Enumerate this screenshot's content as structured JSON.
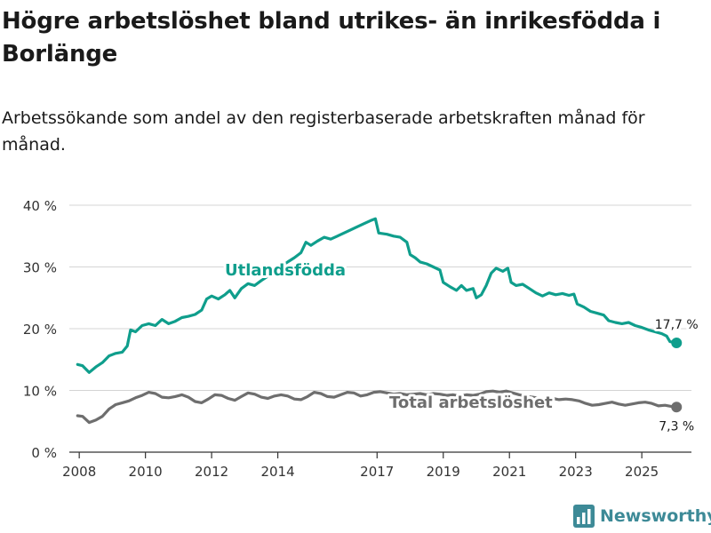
{
  "title": "Högre arbetslöshet bland utrikes- än inrikesfödda i Borlänge",
  "subtitle": "Arbetssökande som andel av den registerbaserade arbetskraften månad för månad.",
  "brand": "Newsworthy",
  "colors": {
    "utlandsfodda": "#0f9e8c",
    "total": "#6e6e6e",
    "brand": "#3d8a97",
    "grid": "#d4d4d4"
  },
  "chart_data": {
    "type": "line",
    "title": "Högre arbetslöshet bland utrikes- än inrikesfödda i Borlänge",
    "xlabel": "",
    "ylabel": "",
    "xlim": [
      2007.7,
      2026.5
    ],
    "ylim": [
      0,
      40
    ],
    "x_ticks": [
      2008,
      2010,
      2012,
      2014,
      2017,
      2019,
      2021,
      2023,
      2025
    ],
    "y_ticks": [
      {
        "value": 0,
        "label": "0 %"
      },
      {
        "value": 10,
        "label": "10 %"
      },
      {
        "value": 20,
        "label": "20 %"
      },
      {
        "value": 30,
        "label": "30 %"
      },
      {
        "value": 40,
        "label": "40 %"
      }
    ],
    "series": [
      {
        "name": "Utlandsfödda",
        "label": "Utlandsfödda",
        "end_label": "17,7 %",
        "points": [
          [
            2007.95,
            14.2
          ],
          [
            2008.1,
            14.0
          ],
          [
            2008.3,
            12.9
          ],
          [
            2008.5,
            13.8
          ],
          [
            2008.7,
            14.5
          ],
          [
            2008.9,
            15.6
          ],
          [
            2009.1,
            16.0
          ],
          [
            2009.3,
            16.2
          ],
          [
            2009.45,
            17.2
          ],
          [
            2009.55,
            19.8
          ],
          [
            2009.7,
            19.5
          ],
          [
            2009.9,
            20.5
          ],
          [
            2010.1,
            20.8
          ],
          [
            2010.3,
            20.5
          ],
          [
            2010.5,
            21.5
          ],
          [
            2010.7,
            20.8
          ],
          [
            2010.9,
            21.2
          ],
          [
            2011.1,
            21.8
          ],
          [
            2011.3,
            22.0
          ],
          [
            2011.5,
            22.3
          ],
          [
            2011.7,
            23.0
          ],
          [
            2011.85,
            24.8
          ],
          [
            2012.0,
            25.3
          ],
          [
            2012.2,
            24.8
          ],
          [
            2012.4,
            25.5
          ],
          [
            2012.55,
            26.2
          ],
          [
            2012.7,
            25.0
          ],
          [
            2012.9,
            26.5
          ],
          [
            2013.1,
            27.3
          ],
          [
            2013.3,
            27.0
          ],
          [
            2013.5,
            27.8
          ],
          [
            2013.7,
            28.5
          ],
          [
            2013.9,
            29.3
          ],
          [
            2014.1,
            30.0
          ],
          [
            2014.3,
            30.8
          ],
          [
            2014.5,
            31.5
          ],
          [
            2014.7,
            32.3
          ],
          [
            2014.85,
            34.0
          ],
          [
            2015.0,
            33.5
          ],
          [
            2015.2,
            34.2
          ],
          [
            2015.4,
            34.8
          ],
          [
            2015.6,
            34.5
          ],
          [
            2015.8,
            35.0
          ],
          [
            2016.0,
            35.5
          ],
          [
            2016.2,
            36.0
          ],
          [
            2016.4,
            36.5
          ],
          [
            2016.6,
            37.0
          ],
          [
            2016.8,
            37.5
          ],
          [
            2016.95,
            37.8
          ],
          [
            2017.05,
            35.5
          ],
          [
            2017.3,
            35.3
          ],
          [
            2017.5,
            35.0
          ],
          [
            2017.7,
            34.8
          ],
          [
            2017.9,
            34.0
          ],
          [
            2018.0,
            32.0
          ],
          [
            2018.15,
            31.5
          ],
          [
            2018.3,
            30.8
          ],
          [
            2018.5,
            30.5
          ],
          [
            2018.7,
            30.0
          ],
          [
            2018.9,
            29.5
          ],
          [
            2019.0,
            27.5
          ],
          [
            2019.2,
            26.8
          ],
          [
            2019.4,
            26.2
          ],
          [
            2019.55,
            27.0
          ],
          [
            2019.7,
            26.2
          ],
          [
            2019.9,
            26.5
          ],
          [
            2020.0,
            25.0
          ],
          [
            2020.15,
            25.5
          ],
          [
            2020.3,
            27.0
          ],
          [
            2020.45,
            29.0
          ],
          [
            2020.6,
            29.8
          ],
          [
            2020.8,
            29.3
          ],
          [
            2020.95,
            29.8
          ],
          [
            2021.05,
            27.5
          ],
          [
            2021.2,
            27.0
          ],
          [
            2021.4,
            27.2
          ],
          [
            2021.6,
            26.5
          ],
          [
            2021.8,
            25.8
          ],
          [
            2022.0,
            25.3
          ],
          [
            2022.2,
            25.8
          ],
          [
            2022.4,
            25.5
          ],
          [
            2022.6,
            25.7
          ],
          [
            2022.8,
            25.4
          ],
          [
            2022.95,
            25.6
          ],
          [
            2023.05,
            24.0
          ],
          [
            2023.25,
            23.5
          ],
          [
            2023.45,
            22.8
          ],
          [
            2023.65,
            22.5
          ],
          [
            2023.85,
            22.2
          ],
          [
            2024.0,
            21.3
          ],
          [
            2024.2,
            21.0
          ],
          [
            2024.4,
            20.8
          ],
          [
            2024.6,
            21.0
          ],
          [
            2024.8,
            20.5
          ],
          [
            2025.0,
            20.2
          ],
          [
            2025.2,
            19.8
          ],
          [
            2025.4,
            19.5
          ],
          [
            2025.6,
            19.2
          ],
          [
            2025.75,
            18.8
          ],
          [
            2025.85,
            17.9
          ],
          [
            2026.05,
            17.7
          ]
        ]
      },
      {
        "name": "Total arbetslöshet",
        "label": "Total arbetslöshet",
        "end_label": "7,3 %",
        "points": [
          [
            2007.95,
            5.9
          ],
          [
            2008.1,
            5.8
          ],
          [
            2008.3,
            4.8
          ],
          [
            2008.5,
            5.2
          ],
          [
            2008.7,
            5.8
          ],
          [
            2008.9,
            7.0
          ],
          [
            2009.1,
            7.7
          ],
          [
            2009.3,
            8.0
          ],
          [
            2009.5,
            8.3
          ],
          [
            2009.7,
            8.8
          ],
          [
            2009.9,
            9.2
          ],
          [
            2010.1,
            9.7
          ],
          [
            2010.3,
            9.5
          ],
          [
            2010.5,
            8.9
          ],
          [
            2010.7,
            8.8
          ],
          [
            2010.9,
            9.0
          ],
          [
            2011.1,
            9.3
          ],
          [
            2011.3,
            8.9
          ],
          [
            2011.5,
            8.2
          ],
          [
            2011.7,
            8.0
          ],
          [
            2011.9,
            8.6
          ],
          [
            2012.1,
            9.3
          ],
          [
            2012.3,
            9.2
          ],
          [
            2012.5,
            8.7
          ],
          [
            2012.7,
            8.4
          ],
          [
            2012.9,
            9.0
          ],
          [
            2013.1,
            9.6
          ],
          [
            2013.3,
            9.4
          ],
          [
            2013.5,
            8.9
          ],
          [
            2013.7,
            8.7
          ],
          [
            2013.9,
            9.1
          ],
          [
            2014.1,
            9.3
          ],
          [
            2014.3,
            9.1
          ],
          [
            2014.5,
            8.6
          ],
          [
            2014.7,
            8.5
          ],
          [
            2014.9,
            9.0
          ],
          [
            2015.1,
            9.7
          ],
          [
            2015.3,
            9.5
          ],
          [
            2015.5,
            9.0
          ],
          [
            2015.7,
            8.9
          ],
          [
            2015.9,
            9.3
          ],
          [
            2016.1,
            9.7
          ],
          [
            2016.3,
            9.6
          ],
          [
            2016.5,
            9.1
          ],
          [
            2016.7,
            9.3
          ],
          [
            2016.9,
            9.7
          ],
          [
            2017.1,
            9.8
          ],
          [
            2017.3,
            9.6
          ],
          [
            2017.5,
            9.4
          ],
          [
            2017.7,
            9.5
          ],
          [
            2017.9,
            9.3
          ],
          [
            2018.1,
            9.4
          ],
          [
            2018.3,
            9.5
          ],
          [
            2018.5,
            9.3
          ],
          [
            2018.7,
            9.5
          ],
          [
            2018.9,
            9.4
          ],
          [
            2019.1,
            9.2
          ],
          [
            2019.3,
            9.3
          ],
          [
            2019.5,
            9.1
          ],
          [
            2019.7,
            9.3
          ],
          [
            2019.9,
            9.2
          ],
          [
            2020.1,
            9.4
          ],
          [
            2020.3,
            9.8
          ],
          [
            2020.5,
            9.9
          ],
          [
            2020.7,
            9.7
          ],
          [
            2020.9,
            9.9
          ],
          [
            2021.1,
            9.6
          ],
          [
            2021.3,
            9.3
          ],
          [
            2021.5,
            9.0
          ],
          [
            2021.7,
            8.9
          ],
          [
            2021.9,
            8.7
          ],
          [
            2022.1,
            8.6
          ],
          [
            2022.3,
            8.7
          ],
          [
            2022.5,
            8.5
          ],
          [
            2022.7,
            8.6
          ],
          [
            2022.9,
            8.5
          ],
          [
            2023.1,
            8.3
          ],
          [
            2023.3,
            7.9
          ],
          [
            2023.5,
            7.6
          ],
          [
            2023.7,
            7.7
          ],
          [
            2023.9,
            7.9
          ],
          [
            2024.1,
            8.1
          ],
          [
            2024.3,
            7.8
          ],
          [
            2024.5,
            7.6
          ],
          [
            2024.7,
            7.8
          ],
          [
            2024.9,
            8.0
          ],
          [
            2025.1,
            8.1
          ],
          [
            2025.3,
            7.9
          ],
          [
            2025.5,
            7.5
          ],
          [
            2025.7,
            7.6
          ],
          [
            2025.9,
            7.4
          ],
          [
            2026.05,
            7.3
          ]
        ]
      }
    ]
  }
}
